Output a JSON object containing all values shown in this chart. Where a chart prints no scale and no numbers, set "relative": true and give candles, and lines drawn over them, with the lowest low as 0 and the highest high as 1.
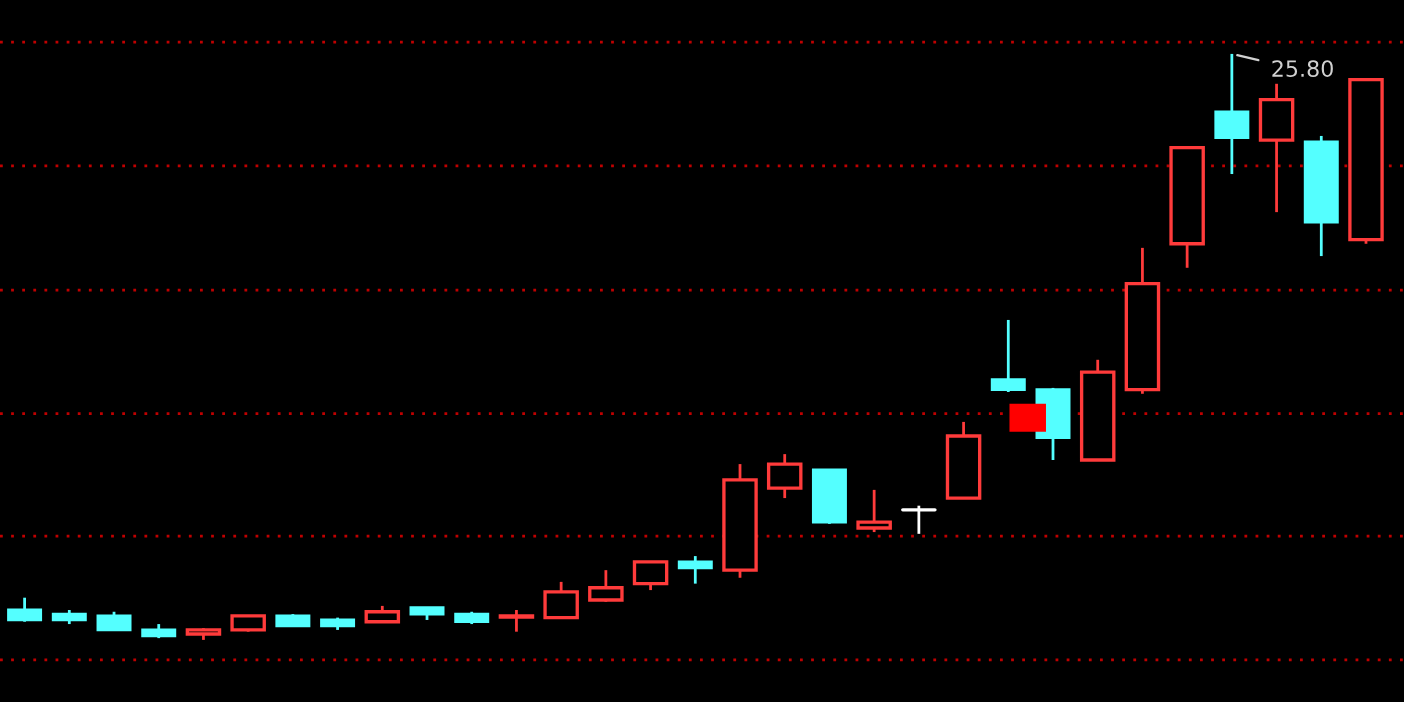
{
  "chart_data": {
    "type": "candlestick",
    "relative": true,
    "ref_lines": [
      {
        "axis": "y",
        "value": 1.02,
        "color": "#c00000",
        "line_style": "dotted"
      },
      {
        "axis": "y",
        "value": 0.809,
        "color": "#c00000",
        "line_style": "dotted"
      },
      {
        "axis": "y",
        "value": 0.597,
        "color": "#c00000",
        "line_style": "dotted"
      },
      {
        "axis": "y",
        "value": 0.386,
        "color": "#c00000",
        "line_style": "dotted"
      },
      {
        "axis": "y",
        "value": 0.177,
        "color": "#c00000",
        "line_style": "dotted"
      },
      {
        "axis": "y",
        "value": -0.034,
        "color": "#c00000",
        "line_style": "dotted"
      }
    ],
    "categories": [
      null,
      null,
      null,
      null,
      null,
      null,
      null,
      null,
      null,
      null,
      null,
      null,
      null,
      null,
      null,
      null,
      null,
      null,
      null,
      null,
      null,
      null,
      null,
      null,
      null,
      null,
      null,
      null,
      null,
      null,
      null
    ],
    "ohlc": [
      [
        0.051,
        0.072,
        0.031,
        0.034
      ],
      [
        0.044,
        0.051,
        0.027,
        0.034
      ],
      [
        0.041,
        0.048,
        0.017,
        0.017
      ],
      [
        0.017,
        0.027,
        0.003,
        0.007
      ],
      [
        0.01,
        0.02,
        0,
        0.017
      ],
      [
        0.017,
        0.041,
        0.014,
        0.041
      ],
      [
        0.041,
        0.044,
        0.024,
        0.024
      ],
      [
        0.034,
        0.038,
        0.017,
        0.024
      ],
      [
        0.031,
        0.058,
        0.031,
        0.048
      ],
      [
        0.055,
        0.055,
        0.034,
        0.044
      ],
      [
        0.044,
        0.048,
        0.027,
        0.031
      ],
      [
        0.039,
        0.051,
        0.014,
        0.041
      ],
      [
        0.038,
        0.099,
        0.038,
        0.082
      ],
      [
        0.068,
        0.119,
        0.065,
        0.089
      ],
      [
        0.096,
        0.133,
        0.085,
        0.133
      ],
      [
        0.133,
        0.143,
        0.096,
        0.123
      ],
      [
        0.119,
        0.3,
        0.106,
        0.273
      ],
      [
        0.259,
        0.317,
        0.242,
        0.3
      ],
      [
        0.29,
        0.29,
        0.198,
        0.201
      ],
      [
        0.191,
        0.256,
        0.184,
        0.201
      ],
      [
        0.222,
        0.229,
        0.181,
        0.222
      ],
      [
        0.242,
        0.372,
        0.242,
        0.348
      ],
      [
        0.444,
        0.546,
        0.423,
        0.427
      ],
      [
        0.427,
        0.43,
        0.307,
        0.345
      ],
      [
        0.307,
        0.478,
        0.307,
        0.457
      ],
      [
        0.427,
        0.669,
        0.42,
        0.608
      ],
      [
        0.676,
        0.84,
        0.635,
        0.84
      ],
      [
        0.901,
        1,
        0.795,
        0.857
      ],
      [
        0.853,
        0.949,
        0.73,
        0.922
      ],
      [
        0.85,
        0.86,
        0.655,
        0.713
      ],
      [
        0.683,
        0.956,
        0.676,
        0.956
      ]
    ],
    "colors": [
      "#54ffff",
      "#54ffff",
      "#54ffff",
      "#54ffff",
      "#ff3b3b",
      "#ff3b3b",
      "#54ffff",
      "#54ffff",
      "#ff3b3b",
      "#54ffff",
      "#54ffff",
      "#ff3b3b",
      "#ff3b3b",
      "#ff3b3b",
      "#ff3b3b",
      "#54ffff",
      "#ff3b3b",
      "#ff3b3b",
      "#54ffff",
      "#ff3b3b",
      "#ffffff",
      "#ff3b3b",
      "#54ffff",
      "#54ffff",
      "#ff3b3b",
      "#ff3b3b",
      "#ff3b3b",
      "#54ffff",
      "#ff3b3b",
      "#54ffff",
      "#ff3b3b"
    ],
    "annotations": [
      "25.80"
    ]
  }
}
